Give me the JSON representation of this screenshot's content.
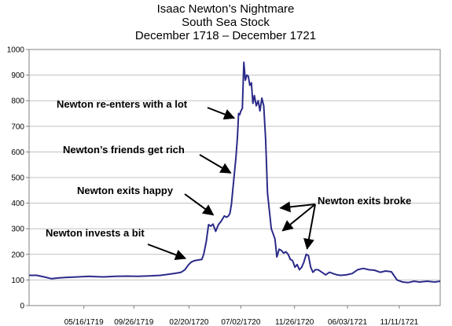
{
  "chart_data": {
    "type": "line",
    "title": [
      "Isaac Newton’s Nightmare",
      "South Sea Stock",
      "December 1718 – December 1721"
    ],
    "xlabel": "",
    "ylabel": "",
    "ylim": [
      0,
      1000
    ],
    "yticks": [
      0,
      100,
      200,
      300,
      400,
      500,
      600,
      700,
      800,
      900,
      1000
    ],
    "ytick_labels": [
      "0",
      "100",
      "200",
      "300",
      "400",
      "500",
      "600",
      "700",
      "800",
      "900",
      "1000"
    ],
    "xlim": [
      0,
      1095
    ],
    "xticks": [
      146,
      279,
      426,
      564,
      707,
      848,
      986
    ],
    "xtick_labels": [
      "05/16/1719",
      "09/26/1719",
      "02/20/1720",
      "07/02/1720",
      "11/26/1720",
      "06/03/1721",
      "11/11/1721"
    ],
    "grid": true,
    "series": [
      {
        "name": "",
        "color": "#2b2b8a",
        "x": [
          0,
          20,
          40,
          60,
          80,
          100,
          130,
          160,
          180,
          200,
          230,
          260,
          290,
          320,
          350,
          370,
          390,
          405,
          415,
          425,
          432,
          440,
          450,
          460,
          465,
          472,
          478,
          484,
          490,
          497,
          504,
          512,
          520,
          526,
          531,
          535,
          539,
          543,
          547,
          551,
          555,
          558,
          561,
          564,
          568,
          572,
          576,
          580,
          584,
          588,
          592,
          596,
          600,
          605,
          610,
          615,
          620,
          625,
          630,
          635,
          640,
          645,
          650,
          655,
          660,
          666,
          672,
          678,
          684,
          690,
          696,
          702,
          708,
          714,
          720,
          726,
          732,
          738,
          744,
          750,
          756,
          762,
          770,
          780,
          790,
          800,
          810,
          820,
          830,
          845,
          860,
          875,
          890,
          905,
          920,
          935,
          950,
          965,
          980,
          995,
          1010,
          1025,
          1040,
          1060,
          1080,
          1095
        ],
        "values": [
          118,
          118,
          112,
          105,
          108,
          110,
          112,
          114,
          113,
          112,
          114,
          115,
          114,
          116,
          118,
          122,
          126,
          130,
          140,
          160,
          170,
          175,
          178,
          180,
          200,
          250,
          316,
          310,
          318,
          290,
          315,
          330,
          350,
          345,
          350,
          360,
          395,
          460,
          520,
          580,
          660,
          750,
          745,
          760,
          770,
          950,
          880,
          900,
          895,
          860,
          870,
          790,
          820,
          780,
          800,
          760,
          810,
          780,
          650,
          440,
          370,
          300,
          280,
          260,
          190,
          220,
          215,
          205,
          210,
          200,
          180,
          175,
          150,
          160,
          140,
          150,
          170,
          200,
          195,
          150,
          130,
          140,
          140,
          130,
          120,
          130,
          125,
          120,
          118,
          120,
          125,
          140,
          145,
          140,
          138,
          130,
          135,
          132,
          100,
          92,
          90,
          95,
          92,
          95,
          92,
          95
        ]
      }
    ],
    "annotations": [
      {
        "text": "Newton invests a bit",
        "x": 424,
        "y": 180
      },
      {
        "text": "Newton exits happy",
        "x": 497,
        "y": 347
      },
      {
        "text": "Newton’s friends get rich",
        "x": 544,
        "y": 512
      },
      {
        "text": "Newton re-enters with a lot",
        "x": 554,
        "y": 728
      },
      {
        "text": "Newton exits broke",
        "x": [
          661,
          669,
          739
        ],
        "y": [
          380,
          285,
          210
        ]
      }
    ]
  }
}
